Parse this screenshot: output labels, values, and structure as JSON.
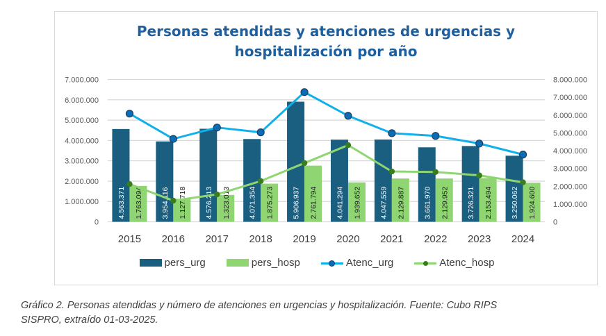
{
  "chart_data": {
    "type": "bar+line",
    "title": "Personas atendidas y atenciones de urgencias y hospitalización por año",
    "title_lines": [
      "Personas atendidas y atenciones de urgencias y",
      "hospitalización por año"
    ],
    "categories": [
      "2015",
      "2016",
      "2017",
      "2018",
      "2019",
      "2020",
      "2021",
      "2022",
      "2023",
      "2024"
    ],
    "xlabel": "",
    "y_left": {
      "range": [
        0,
        7000000
      ],
      "ticks": [
        0,
        1000000,
        2000000,
        3000000,
        4000000,
        5000000,
        6000000,
        7000000
      ],
      "tick_labels": [
        "0",
        "1.000.000",
        "2.000.000",
        "3.000.000",
        "4.000.000",
        "5.000.000",
        "6.000.000",
        "7.000.000"
      ]
    },
    "y_right": {
      "range": [
        0,
        8000000
      ],
      "ticks": [
        0,
        1000000,
        2000000,
        3000000,
        4000000,
        5000000,
        6000000,
        7000000,
        8000000
      ],
      "tick_labels": [
        "0",
        "1.000.000",
        "2.000.000",
        "3.000.000",
        "4.000.000",
        "5.000.000",
        "6.000.000",
        "7.000.000",
        "8.000.000"
      ]
    },
    "grid": true,
    "legend_position": "bottom",
    "series": [
      {
        "name": "pers_urg",
        "kind": "bar",
        "axis": "left",
        "color": "#1a5e80",
        "values": [
          4563371,
          3954116,
          4576213,
          4071354,
          5906937,
          4041294,
          4047559,
          3661970,
          3726321,
          3250062
        ],
        "labels": [
          "4.563.371",
          "3.954.116",
          "4.576.213",
          "4.071.354",
          "5.906.937",
          "4.041.294",
          "4.047.559",
          "3.661.970",
          "3.726.321",
          "3.250.062"
        ],
        "label_color": "#ffffff"
      },
      {
        "name": "pers_hosp",
        "kind": "bar",
        "axis": "left",
        "color": "#8fd672",
        "values": [
          1763094,
          1127718,
          1323013,
          1875273,
          2761794,
          1939652,
          2129887,
          2129952,
          2153494,
          1924600
        ],
        "labels": [
          "1.763.094",
          "1.127.718",
          "1.323.013",
          "1.875.273",
          "2.761.794",
          "1.939.652",
          "2.129.887",
          "2.129.952",
          "2.153.494",
          "1.924.600"
        ],
        "label_color": "#1a1a1a"
      },
      {
        "name": "Atenc_urg",
        "kind": "line",
        "axis": "right",
        "color": "#12b0ea",
        "marker_color": "#0b6db5",
        "values": [
          6080000,
          4660000,
          5300000,
          5030000,
          7290000,
          5960000,
          4980000,
          4830000,
          4400000,
          3780000
        ]
      },
      {
        "name": "Atenc_hosp",
        "kind": "line",
        "axis": "right",
        "color": "#8fd672",
        "marker_color": "#3a7d1e",
        "values": [
          2120000,
          1190000,
          1540000,
          2290000,
          3300000,
          4310000,
          2830000,
          2800000,
          2610000,
          2220000
        ]
      }
    ]
  },
  "caption": {
    "line1": "Gráfico 2.  Personas atendidas y número de atenciones en urgencias y hospitalización.  Fuente: Cubo RIPS",
    "line2": "SISPRO, extraído 01-03-2025."
  },
  "colors": {
    "title": "#1f5f9e",
    "grid": "#d9d9d9",
    "axis_text": "#595959"
  }
}
